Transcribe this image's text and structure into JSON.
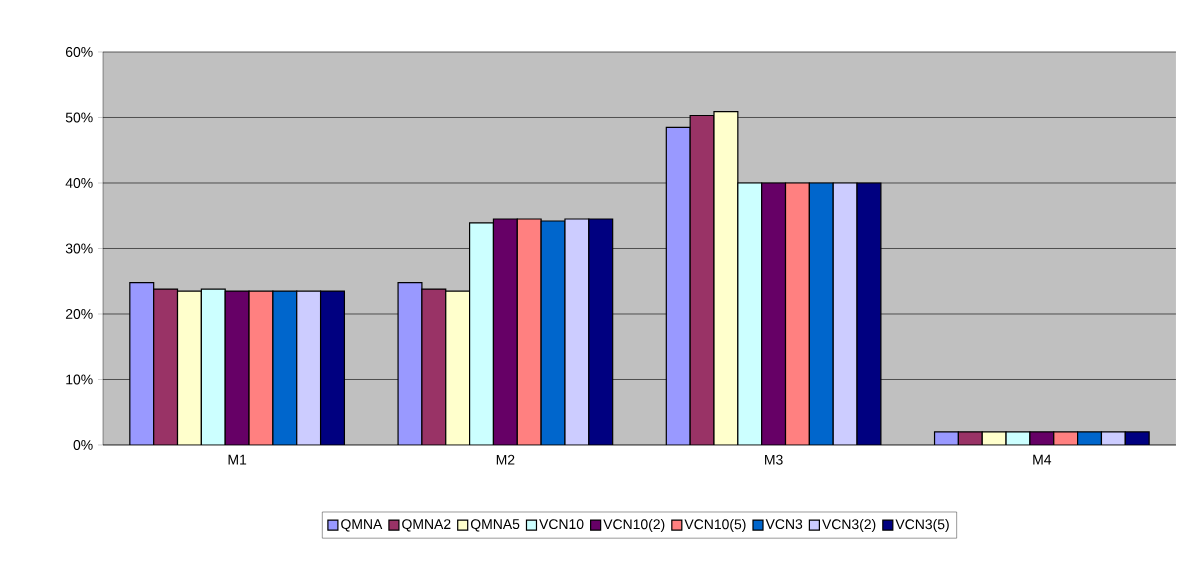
{
  "chart_data": {
    "type": "bar",
    "categories": [
      "M1",
      "M2",
      "M3",
      "M4"
    ],
    "series": [
      {
        "name": "QMNA",
        "color": "#9999ff",
        "values": [
          24.8,
          24.8,
          48.5,
          2.0
        ]
      },
      {
        "name": "QMNA2",
        "color": "#993366",
        "values": [
          23.8,
          23.8,
          50.3,
          2.0
        ]
      },
      {
        "name": "QMNA5",
        "color": "#ffffcc",
        "values": [
          23.5,
          23.5,
          50.9,
          2.0
        ]
      },
      {
        "name": "VCN10",
        "color": "#ccffff",
        "values": [
          23.8,
          33.9,
          40.0,
          2.0
        ]
      },
      {
        "name": "VCN10(2)",
        "color": "#660066",
        "values": [
          23.5,
          34.5,
          40.0,
          2.0
        ]
      },
      {
        "name": "VCN10(5)",
        "color": "#ff8080",
        "values": [
          23.5,
          34.5,
          40.0,
          2.0
        ]
      },
      {
        "name": "VCN3",
        "color": "#0066cc",
        "values": [
          23.5,
          34.2,
          40.0,
          2.0
        ]
      },
      {
        "name": "VCN3(2)",
        "color": "#ccccff",
        "values": [
          23.5,
          34.5,
          40.0,
          2.0
        ]
      },
      {
        "name": "VCN3(5)",
        "color": "#000080",
        "values": [
          23.5,
          34.5,
          40.0,
          2.0
        ]
      }
    ],
    "ylim": [
      0,
      60
    ],
    "yticks": [
      {
        "value": 0,
        "label": "0%"
      },
      {
        "value": 10,
        "label": "10%"
      },
      {
        "value": 20,
        "label": "20%"
      },
      {
        "value": 30,
        "label": "30%"
      },
      {
        "value": 40,
        "label": "40%"
      },
      {
        "value": 50,
        "label": "50%"
      },
      {
        "value": 60,
        "label": "60%"
      }
    ],
    "grid": "y",
    "legend": "bottom"
  }
}
